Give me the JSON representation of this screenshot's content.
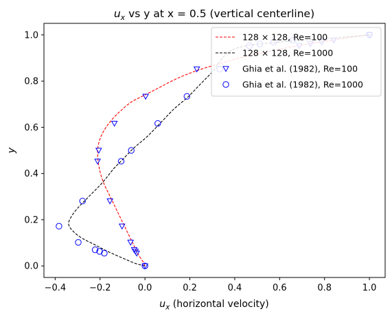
{
  "chart_data": {
    "type": "line",
    "title": "u_x vs y at x = 0.5 (vertical centerline)",
    "title_parts": {
      "main": "u",
      "sub": "x",
      "rest": " vs y at x = 0.5 (vertical centerline)"
    },
    "xlabel": "u_x (horizontal velocity)",
    "xlabel_parts": {
      "main": "u",
      "sub": "x",
      "rest": " (horizontal velocity)"
    },
    "ylabel": "y",
    "xlim": [
      -0.45,
      1.07
    ],
    "ylim": [
      1.05,
      -0.05
    ],
    "y_inverted": true,
    "xticks": [
      -0.4,
      -0.2,
      0.0,
      0.2,
      0.4,
      0.6,
      0.8,
      1.0
    ],
    "xtick_labels": [
      "−0.4",
      "−0.2",
      "0.0",
      "0.2",
      "0.4",
      "0.6",
      "0.8",
      "1.0"
    ],
    "yticks": [
      0.0,
      0.2,
      0.4,
      0.6,
      0.8,
      1.0
    ],
    "ytick_labels": [
      "0.0",
      "0.2",
      "0.4",
      "0.6",
      "0.8",
      "1.0"
    ],
    "grid": false,
    "legend_position": "top-right",
    "series": [
      {
        "name": "128 × 128, Re=100",
        "style": "dashed-line",
        "color": "#ff0000",
        "points": [
          [
            0.0,
            0.0
          ],
          [
            -0.01,
            0.02
          ],
          [
            -0.03,
            0.05
          ],
          [
            -0.045,
            0.08
          ],
          [
            -0.06,
            0.11
          ],
          [
            -0.08,
            0.15
          ],
          [
            -0.1,
            0.19
          ],
          [
            -0.12,
            0.23
          ],
          [
            -0.14,
            0.27
          ],
          [
            -0.16,
            0.31
          ],
          [
            -0.18,
            0.35
          ],
          [
            -0.195,
            0.39
          ],
          [
            -0.205,
            0.43
          ],
          [
            -0.21,
            0.47
          ],
          [
            -0.21,
            0.51
          ],
          [
            -0.2,
            0.55
          ],
          [
            -0.18,
            0.59
          ],
          [
            -0.15,
            0.63
          ],
          [
            -0.11,
            0.67
          ],
          [
            -0.06,
            0.71
          ],
          [
            0.0,
            0.74
          ],
          [
            0.06,
            0.77
          ],
          [
            0.14,
            0.81
          ],
          [
            0.23,
            0.845
          ],
          [
            0.33,
            0.875
          ],
          [
            0.44,
            0.905
          ],
          [
            0.56,
            0.93
          ],
          [
            0.68,
            0.953
          ],
          [
            0.8,
            0.972
          ],
          [
            0.9,
            0.987
          ],
          [
            1.0,
            1.0
          ]
        ]
      },
      {
        "name": "128 × 128, Re=1000",
        "style": "dashed-line",
        "color": "#000000",
        "points": [
          [
            0.0,
            0.0
          ],
          [
            -0.04,
            0.01
          ],
          [
            -0.09,
            0.03
          ],
          [
            -0.16,
            0.06
          ],
          [
            -0.22,
            0.09
          ],
          [
            -0.28,
            0.12
          ],
          [
            -0.32,
            0.15
          ],
          [
            -0.34,
            0.18
          ],
          [
            -0.33,
            0.21
          ],
          [
            -0.3,
            0.25
          ],
          [
            -0.25,
            0.3
          ],
          [
            -0.19,
            0.36
          ],
          [
            -0.14,
            0.42
          ],
          [
            -0.1,
            0.46
          ],
          [
            -0.05,
            0.51
          ],
          [
            0.01,
            0.56
          ],
          [
            0.07,
            0.62
          ],
          [
            0.13,
            0.68
          ],
          [
            0.19,
            0.73
          ],
          [
            0.25,
            0.79
          ],
          [
            0.3,
            0.84
          ],
          [
            0.33,
            0.88
          ],
          [
            0.36,
            0.915
          ],
          [
            0.4,
            0.94
          ],
          [
            0.47,
            0.956
          ],
          [
            0.57,
            0.966
          ],
          [
            0.66,
            0.974
          ],
          [
            0.76,
            0.981
          ],
          [
            0.86,
            0.988
          ],
          [
            0.94,
            0.995
          ],
          [
            1.0,
            1.0
          ]
        ]
      },
      {
        "name": "Ghia et al. (1982), Re=100",
        "style": "triangle-down-markers",
        "color": "#0000ff",
        "points": [
          [
            0.0,
            0.0
          ],
          [
            -0.037,
            0.055
          ],
          [
            -0.042,
            0.063
          ],
          [
            -0.048,
            0.07
          ],
          [
            -0.064,
            0.102
          ],
          [
            -0.102,
            0.172
          ],
          [
            -0.156,
            0.281
          ],
          [
            -0.211,
            0.453
          ],
          [
            -0.206,
            0.5
          ],
          [
            -0.136,
            0.617
          ],
          [
            0.003,
            0.734
          ],
          [
            0.231,
            0.852
          ],
          [
            0.687,
            0.953
          ],
          [
            0.737,
            0.961
          ],
          [
            0.788,
            0.969
          ],
          [
            0.841,
            0.977
          ],
          [
            1.0,
            1.0
          ]
        ]
      },
      {
        "name": "Ghia et al. (1982), Re=1000",
        "style": "circle-markers",
        "color": "#0000ff",
        "points": [
          [
            0.0,
            0.0
          ],
          [
            -0.181,
            0.055
          ],
          [
            -0.202,
            0.063
          ],
          [
            -0.222,
            0.07
          ],
          [
            -0.297,
            0.102
          ],
          [
            -0.383,
            0.172
          ],
          [
            -0.278,
            0.281
          ],
          [
            -0.106,
            0.453
          ],
          [
            -0.061,
            0.5
          ],
          [
            0.057,
            0.617
          ],
          [
            0.187,
            0.734
          ],
          [
            0.333,
            0.852
          ],
          [
            0.466,
            0.953
          ],
          [
            0.512,
            0.961
          ],
          [
            0.574,
            0.969
          ],
          [
            0.659,
            0.977
          ],
          [
            1.0,
            1.0
          ]
        ]
      }
    ]
  }
}
